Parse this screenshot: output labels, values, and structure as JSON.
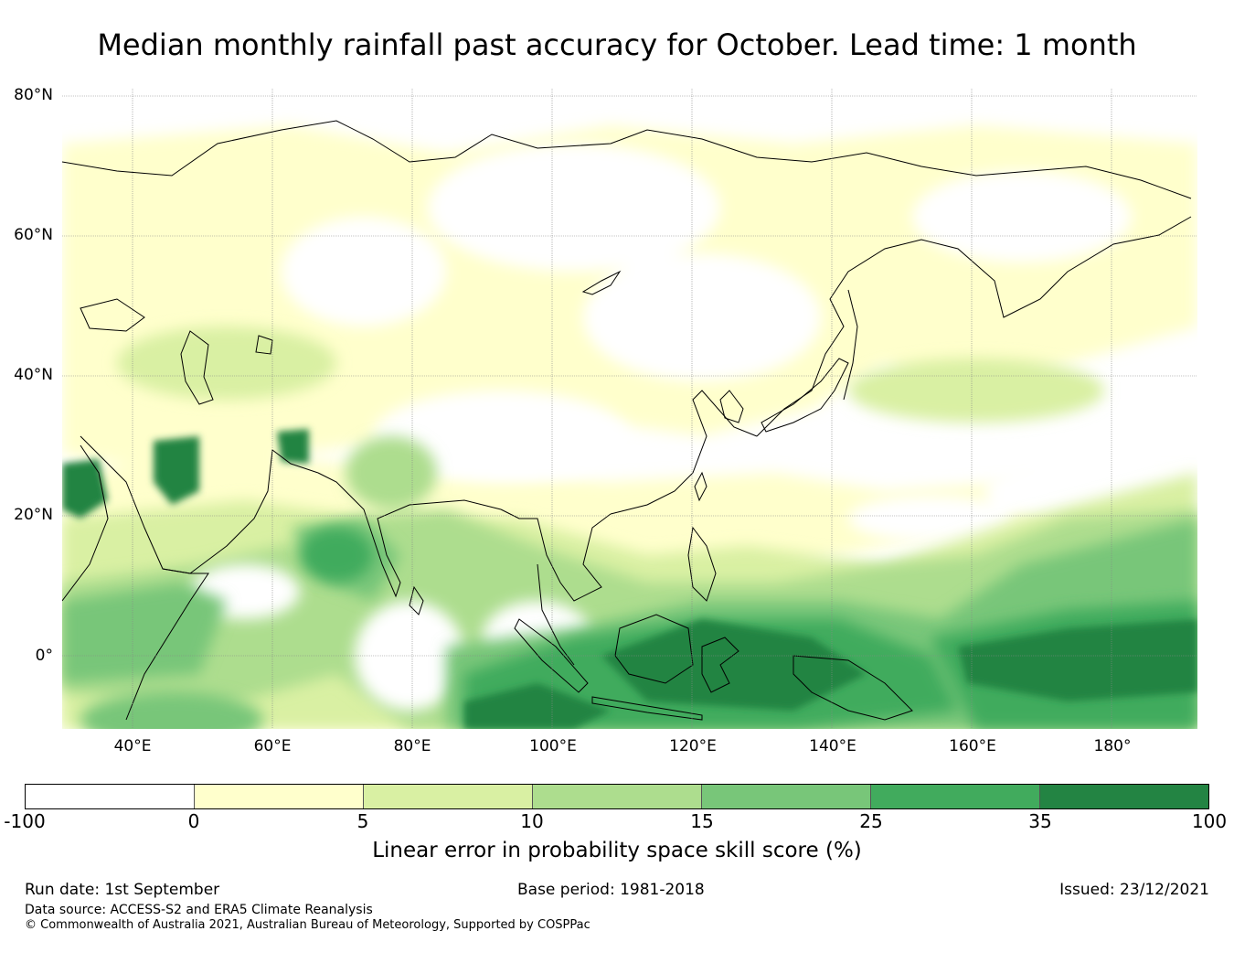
{
  "title": "Median monthly rainfall past accuracy for October. Lead time: 1 month",
  "map": {
    "lat_labels": [
      "80°N",
      "60°N",
      "40°N",
      "20°N",
      "0°"
    ],
    "lon_labels": [
      "40°E",
      "60°E",
      "80°E",
      "100°E",
      "120°E",
      "140°E",
      "160°E",
      "180°"
    ]
  },
  "colorbar": {
    "label": "Linear error in probability space skill score (%)",
    "ticks": [
      "-100",
      "0",
      "5",
      "10",
      "15",
      "25",
      "35",
      "100"
    ],
    "colors": [
      "#ffffff",
      "#ffffcc",
      "#d9f0a3",
      "#addd8e",
      "#78c679",
      "#41ab5d",
      "#238443"
    ]
  },
  "footer": {
    "run_date": "Run date: 1st September",
    "base_period": "Base period: 1981-2018",
    "issued": "Issued: 23/12/2021",
    "data_source": "Data source: ACCESS-S2 and ERA5 Climate Reanalysis",
    "copyright": "© Commonwealth of Australia 2021, Australian Bureau of Meteorology, Supported by COSPPac"
  }
}
